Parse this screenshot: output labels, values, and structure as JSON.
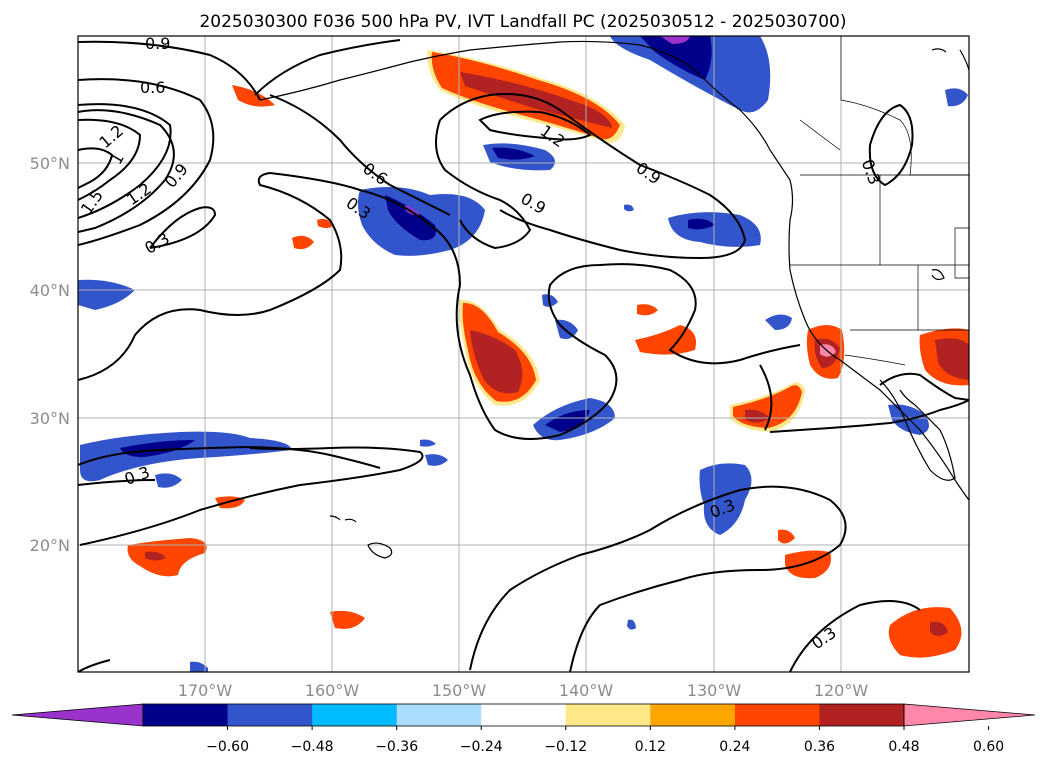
{
  "title": "2025030300 F036 500 hPa PV, IVT Landfall PC (2025030512 - 2025030700)",
  "lat_labels": [
    "50°N",
    "40°N",
    "30°N",
    "20°N"
  ],
  "lon_labels": [
    "170°W",
    "160°W",
    "150°W",
    "140°W",
    "130°W",
    "120°W"
  ],
  "colorbar": {
    "ticks": [
      "−0.60",
      "−0.48",
      "−0.36",
      "−0.24",
      "−0.12",
      "0.12",
      "0.24",
      "0.36",
      "0.48",
      "0.60"
    ],
    "colors": [
      "#9933cc",
      "#00008b",
      "#3355cc",
      "#00bbff",
      "#aaddff",
      "#ffffff",
      "#ffe88a",
      "#ffa500",
      "#ff4500",
      "#b22222",
      "#ff88aa"
    ]
  },
  "contour_labels": [
    "0.9",
    "0.6",
    "1.2",
    "1.5",
    "1",
    "1.2",
    "0.9",
    "0.6",
    "0.3",
    "0.3",
    "1.2",
    "0.9",
    "0.9",
    "0.3",
    "0.3",
    "0.3",
    "0.3"
  ]
}
